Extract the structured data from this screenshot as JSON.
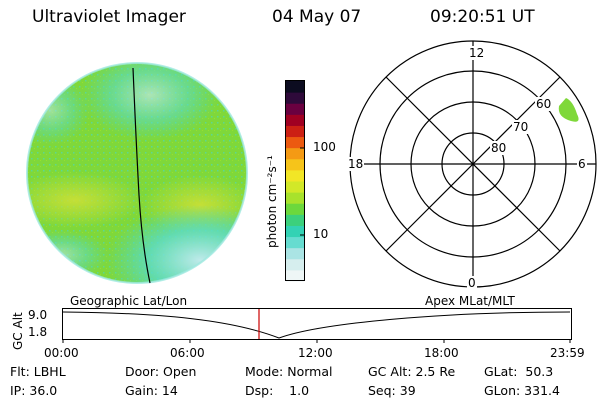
{
  "header": {
    "instrument": "Ultraviolet Imager",
    "date": "04 May 07",
    "time": "09:20:51 UT"
  },
  "colorbar": {
    "unit_label": "photon cm⁻²s⁻¹",
    "tick_100": "100",
    "tick_10": "10",
    "scale": "log",
    "colors": [
      "#eef6f6",
      "#d6eeee",
      "#aae4e4",
      "#66dcd0",
      "#33d2b4",
      "#3cd07c",
      "#6cd83c",
      "#a8e22c",
      "#d2e828",
      "#f2e626",
      "#f6c41a",
      "#f49a14",
      "#ec5a10",
      "#cc2014",
      "#a00022",
      "#6a0040",
      "#2e0a3a",
      "#0c0c20"
    ]
  },
  "image_colors": {
    "green": "#7fd83a",
    "yellow": "#cce036",
    "cyan": "#44d8cc",
    "pale": "#d6f0f0"
  },
  "polar": {
    "labels": {
      "top": "12",
      "left": "18",
      "right": "6",
      "bottom": "0"
    },
    "ring_labels": [
      "60",
      "70",
      "80"
    ]
  },
  "timeline": {
    "left_label": "Geographic Lat/Lon",
    "right_label": "Apex MLat/MLT",
    "axis_label": "GC Alt",
    "y_max": "9.0",
    "y_min": "1.8",
    "ticks": [
      "00:00",
      "06:00",
      "12:00",
      "18:00",
      "23:59"
    ],
    "marker_color": "#cc0000"
  },
  "footer": {
    "filter": "Flt: LBHL",
    "ip": "IP: 36.0",
    "door": "Door: Open",
    "gain": "Gain: 14",
    "mode": "Mode: Normal",
    "dsp": "Dsp:    1.0",
    "gc_alt": "GC Alt: 2.5 Re",
    "seq": "Seq: 39",
    "glat": "GLat:  50.3",
    "glon": "GLon: 331.4"
  }
}
